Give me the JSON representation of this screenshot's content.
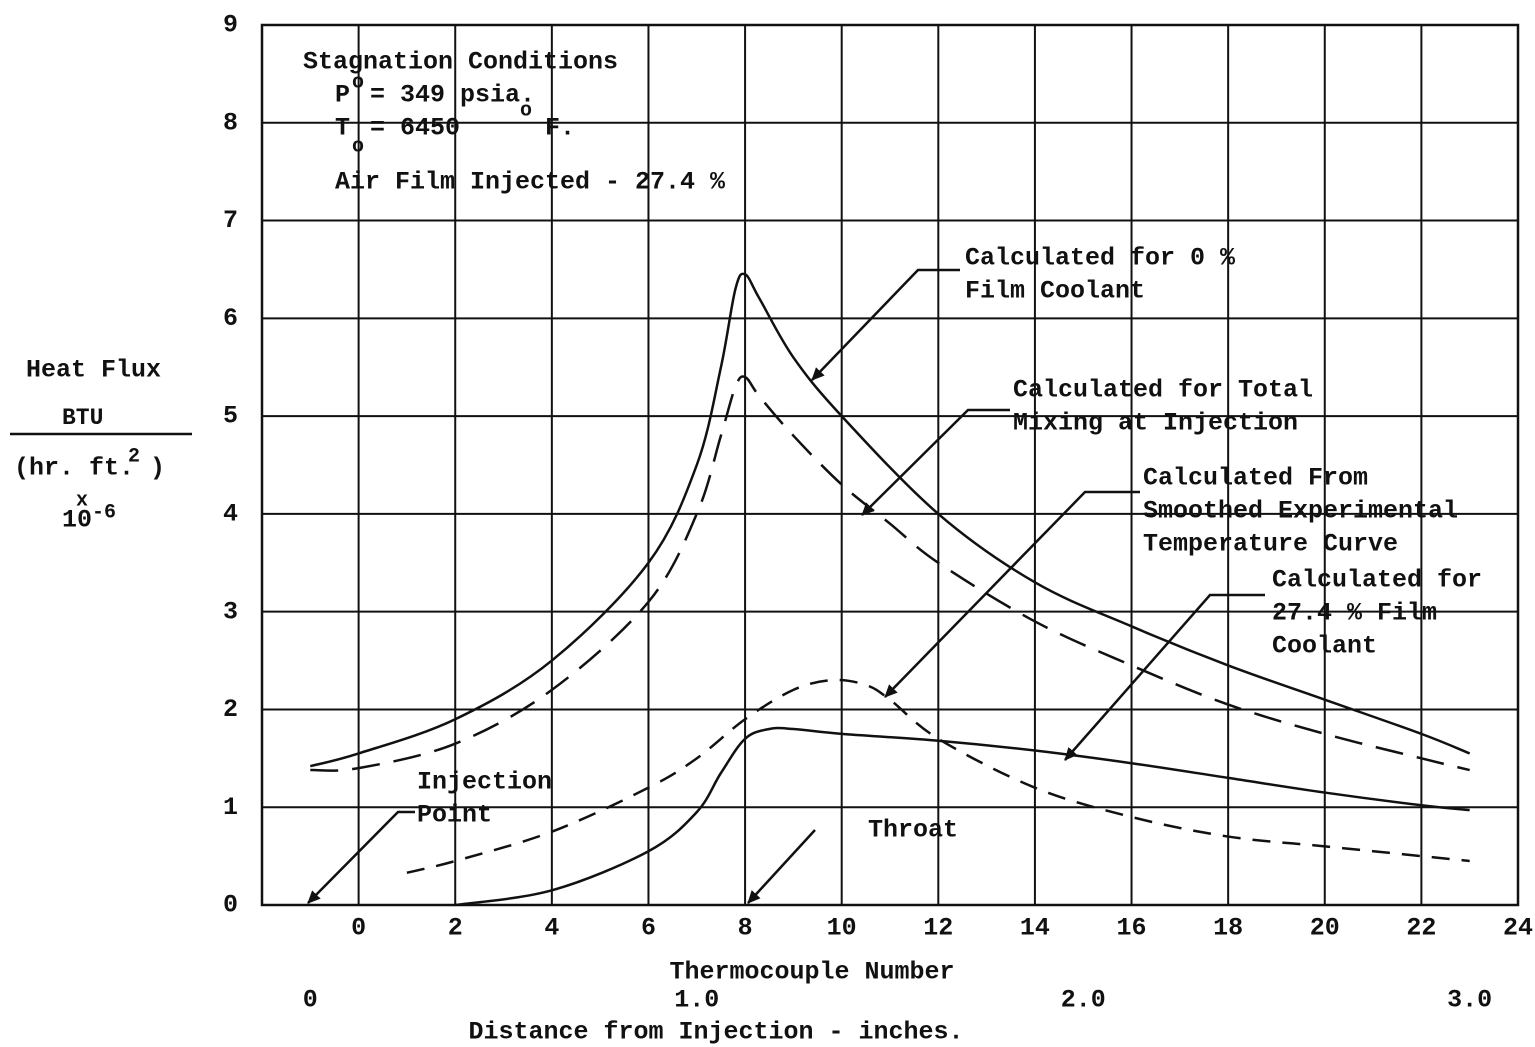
{
  "chart_data": {
    "type": "line",
    "y_label": [
      "Heat Flux",
      "BTU",
      "(hr. ft.",
      "2",
      ")",
      "x",
      "10",
      "-6"
    ],
    "x_label": "Thermocouple Number",
    "x2_label": "Distance from Injection - inches.",
    "xlim": [
      -2,
      24
    ],
    "xticks": [
      0,
      2,
      4,
      6,
      8,
      10,
      12,
      14,
      16,
      18,
      20,
      22,
      24
    ],
    "x2lim": [
      -0.125,
      3.125
    ],
    "x2ticks": [
      0,
      {
        "value": 1,
        "label": "1.0"
      },
      {
        "value": 2,
        "label": "2.0"
      },
      {
        "value": 3,
        "label": "3.0"
      }
    ],
    "ylim": [
      0,
      9
    ],
    "yticks": [
      0,
      1,
      2,
      3,
      4,
      5,
      6,
      7,
      8,
      9
    ],
    "grid": true,
    "stagnation": [
      "Stagnation Conditions",
      "P",
      "o",
      "= 349 psia.",
      "T",
      "o",
      "= 6450",
      "o",
      "F.",
      "Air Film Injected - 27.4 %"
    ],
    "annotations": [
      [
        "Injection",
        "Point"
      ],
      [
        "Throat"
      ]
    ],
    "series": [
      {
        "label": [
          "Calculated for 0 %",
          "Film Coolant"
        ],
        "color": "#111111",
        "dash": "solid",
        "x": [
          -1,
          0,
          2,
          4,
          6,
          7,
          7.5,
          7.8,
          8,
          8.3,
          9,
          10,
          12,
          14,
          16,
          18,
          20,
          22,
          23
        ],
        "values": [
          1.42,
          1.55,
          1.9,
          2.5,
          3.5,
          4.5,
          5.5,
          6.3,
          6.45,
          6.2,
          5.6,
          5.0,
          4.0,
          3.3,
          2.85,
          2.45,
          2.1,
          1.75,
          1.55
        ]
      },
      {
        "label": [
          "Calculated for Total",
          "Mixing at Injection"
        ],
        "color": "#111111",
        "dash": "long",
        "x": [
          -1,
          0,
          2,
          4,
          6,
          7,
          7.5,
          7.8,
          8,
          8.3,
          9,
          10,
          11,
          12,
          14,
          16,
          18,
          20,
          22,
          23
        ],
        "values": [
          1.38,
          1.4,
          1.65,
          2.2,
          3.1,
          4.0,
          4.8,
          5.3,
          5.4,
          5.2,
          4.8,
          4.3,
          3.9,
          3.5,
          2.9,
          2.45,
          2.05,
          1.75,
          1.5,
          1.38
        ]
      },
      {
        "label": [
          "Calculated From",
          "Smoothed Experimental",
          "Temperature Curve"
        ],
        "color": "#111111",
        "dash": "short",
        "x": [
          1,
          2,
          4,
          6,
          7,
          8,
          9,
          9.8,
          10.5,
          11,
          12,
          14,
          16,
          18,
          20,
          22,
          23
        ],
        "values": [
          0.33,
          0.45,
          0.75,
          1.2,
          1.5,
          1.9,
          2.2,
          2.3,
          2.25,
          2.1,
          1.7,
          1.2,
          0.9,
          0.7,
          0.6,
          0.5,
          0.45
        ]
      },
      {
        "label": [
          "Calculated for",
          "27.4 % Film",
          "Coolant"
        ],
        "color": "#111111",
        "dash": "solid",
        "x": [
          2,
          4,
          6,
          7,
          7.5,
          8,
          8.5,
          9,
          10,
          12,
          14,
          16,
          18,
          20,
          22,
          23
        ],
        "values": [
          0,
          0.15,
          0.55,
          0.95,
          1.35,
          1.7,
          1.8,
          1.8,
          1.75,
          1.68,
          1.58,
          1.45,
          1.3,
          1.15,
          1.02,
          0.97
        ]
      }
    ]
  }
}
